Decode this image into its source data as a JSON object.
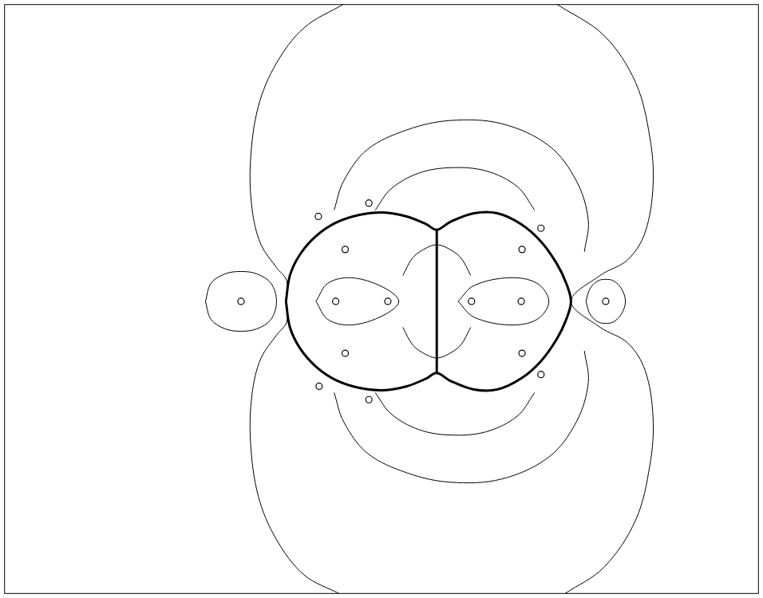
{
  "chart_data": {
    "type": "scatter",
    "xlim": [
      0,
      956
    ],
    "ylim": [
      750,
      0
    ],
    "xticks": [],
    "yticks": [],
    "grid": false,
    "tick_labels": false,
    "series": [
      {
        "color": "#000000",
        "line_style": "solid",
        "values": [
          [
            430,
            0
          ],
          [
            380,
            30
          ],
          [
            345,
            75
          ],
          [
            322,
            130
          ],
          [
            312,
            200
          ],
          [
            314,
            260
          ],
          [
            325,
            305
          ],
          [
            345,
            335
          ],
          [
            358,
            352
          ],
          [
            357,
            378
          ],
          [
            358,
            404
          ],
          [
            345,
            421
          ],
          [
            325,
            451
          ],
          [
            314,
            496
          ],
          [
            312,
            556
          ],
          [
            322,
            626
          ],
          [
            345,
            681
          ],
          [
            380,
            726
          ],
          [
            425,
            750
          ]
        ]
      },
      {
        "color": "#000000",
        "line_style": "solid",
        "values": [
          [
            700,
            0
          ],
          [
            760,
            40
          ],
          [
            800,
            100
          ],
          [
            818,
            170
          ],
          [
            822,
            230
          ],
          [
            812,
            290
          ],
          [
            790,
            325
          ],
          [
            755,
            345
          ],
          [
            718,
            378
          ],
          [
            755,
            411
          ],
          [
            790,
            431
          ],
          [
            812,
            466
          ],
          [
            822,
            526
          ],
          [
            818,
            586
          ],
          [
            800,
            656
          ],
          [
            760,
            716
          ],
          [
            710,
            750
          ]
        ]
      },
      {
        "color": "#000000",
        "line_style": "solid",
        "values": [
          [
            418,
            262
          ],
          [
            430,
            225
          ],
          [
            460,
            185
          ],
          [
            510,
            160
          ],
          [
            565,
            148
          ],
          [
            630,
            152
          ],
          [
            690,
            180
          ],
          [
            725,
            225
          ],
          [
            740,
            275
          ],
          [
            735,
            315
          ]
        ]
      },
      {
        "color": "#000000",
        "line_style": "solid",
        "values": [
          [
            418,
            494
          ],
          [
            430,
            531
          ],
          [
            460,
            571
          ],
          [
            510,
            596
          ],
          [
            565,
            608
          ],
          [
            630,
            604
          ],
          [
            690,
            576
          ],
          [
            725,
            531
          ],
          [
            740,
            481
          ],
          [
            735,
            441
          ]
        ]
      },
      {
        "color": "#000000",
        "line_style": "solid",
        "values": [
          [
            470,
            262
          ],
          [
            490,
            235
          ],
          [
            525,
            215
          ],
          [
            565,
            208
          ],
          [
            610,
            212
          ],
          [
            650,
            232
          ],
          [
            672,
            262
          ]
        ]
      },
      {
        "color": "#000000",
        "line_style": "solid",
        "values": [
          [
            470,
            494
          ],
          [
            490,
            521
          ],
          [
            525,
            541
          ],
          [
            565,
            548
          ],
          [
            610,
            544
          ],
          [
            650,
            524
          ],
          [
            672,
            494
          ]
        ]
      },
      {
        "color": "#000000",
        "line_style": "bold",
        "values": [
          [
            357,
            378
          ],
          [
            362,
            345
          ],
          [
            375,
            318
          ],
          [
            395,
            295
          ],
          [
            420,
            278
          ],
          [
            450,
            268
          ],
          [
            480,
            265
          ],
          [
            510,
            270
          ],
          [
            535,
            280
          ],
          [
            548,
            287
          ],
          [
            565,
            277
          ],
          [
            595,
            266
          ],
          [
            625,
            266
          ],
          [
            655,
            280
          ],
          [
            680,
            302
          ],
          [
            700,
            330
          ],
          [
            712,
            355
          ],
          [
            718,
            378
          ],
          [
            712,
            401
          ],
          [
            700,
            426
          ],
          [
            680,
            454
          ],
          [
            655,
            476
          ],
          [
            625,
            490
          ],
          [
            595,
            490
          ],
          [
            565,
            479
          ],
          [
            548,
            469
          ],
          [
            535,
            476
          ],
          [
            510,
            486
          ],
          [
            480,
            491
          ],
          [
            450,
            488
          ],
          [
            420,
            478
          ],
          [
            395,
            461
          ],
          [
            375,
            438
          ],
          [
            362,
            411
          ],
          [
            357,
            378
          ]
        ]
      },
      {
        "color": "#000000",
        "line_style": "bold",
        "values": [
          [
            548,
            287
          ],
          [
            548,
            330
          ],
          [
            548,
            378
          ],
          [
            548,
            420
          ],
          [
            548,
            469
          ]
        ]
      },
      {
        "color": "#000000",
        "line_style": "solid",
        "values": [
          [
            255,
            378
          ],
          [
            262,
            355
          ],
          [
            280,
            343
          ],
          [
            300,
            340
          ],
          [
            320,
            343
          ],
          [
            338,
            355
          ],
          [
            345,
            378
          ],
          [
            338,
            401
          ],
          [
            320,
            413
          ],
          [
            300,
            416
          ],
          [
            280,
            413
          ],
          [
            262,
            401
          ],
          [
            255,
            378
          ]
        ]
      },
      {
        "color": "#000000",
        "line_style": "solid",
        "values": [
          [
            737,
            378
          ],
          [
            742,
            362
          ],
          [
            752,
            352
          ],
          [
            762,
            350
          ],
          [
            772,
            352
          ],
          [
            782,
            362
          ],
          [
            787,
            378
          ],
          [
            782,
            394
          ],
          [
            772,
            404
          ],
          [
            762,
            406
          ],
          [
            752,
            404
          ],
          [
            742,
            394
          ],
          [
            737,
            378
          ]
        ]
      },
      {
        "color": "#000000",
        "line_style": "solid",
        "values": [
          [
            395,
            378
          ],
          [
            410,
            355
          ],
          [
            440,
            348
          ],
          [
            480,
            360
          ],
          [
            500,
            378
          ],
          [
            480,
            396
          ],
          [
            440,
            408
          ],
          [
            410,
            401
          ],
          [
            395,
            378
          ]
        ]
      },
      {
        "color": "#000000",
        "line_style": "solid",
        "values": [
          [
            575,
            378
          ],
          [
            595,
            358
          ],
          [
            640,
            348
          ],
          [
            675,
            355
          ],
          [
            690,
            378
          ],
          [
            675,
            401
          ],
          [
            640,
            408
          ],
          [
            595,
            398
          ],
          [
            575,
            378
          ]
        ]
      },
      {
        "color": "#000000",
        "line_style": "solid",
        "values": [
          [
            505,
            345
          ],
          [
            518,
            322
          ],
          [
            535,
            310
          ],
          [
            548,
            306
          ],
          [
            561,
            310
          ],
          [
            578,
            322
          ],
          [
            591,
            345
          ]
        ]
      },
      {
        "color": "#000000",
        "line_style": "solid",
        "values": [
          [
            505,
            411
          ],
          [
            518,
            434
          ],
          [
            535,
            446
          ],
          [
            548,
            450
          ],
          [
            561,
            446
          ],
          [
            578,
            434
          ],
          [
            591,
            411
          ]
        ]
      },
      {
        "color": "#000000",
        "line_style": "none",
        "marker": "circle",
        "values": [
          [
            300,
            378
          ],
          [
            762,
            378
          ],
          [
            398,
            270
          ],
          [
            462,
            253
          ],
          [
            432,
            312
          ],
          [
            432,
            444
          ],
          [
            399,
            486
          ],
          [
            462,
            503
          ],
          [
            680,
            285
          ],
          [
            656,
            312
          ],
          [
            680,
            471
          ],
          [
            656,
            444
          ],
          [
            420,
            378
          ],
          [
            486,
            378
          ],
          [
            592,
            378
          ],
          [
            655,
            378
          ]
        ]
      }
    ]
  }
}
